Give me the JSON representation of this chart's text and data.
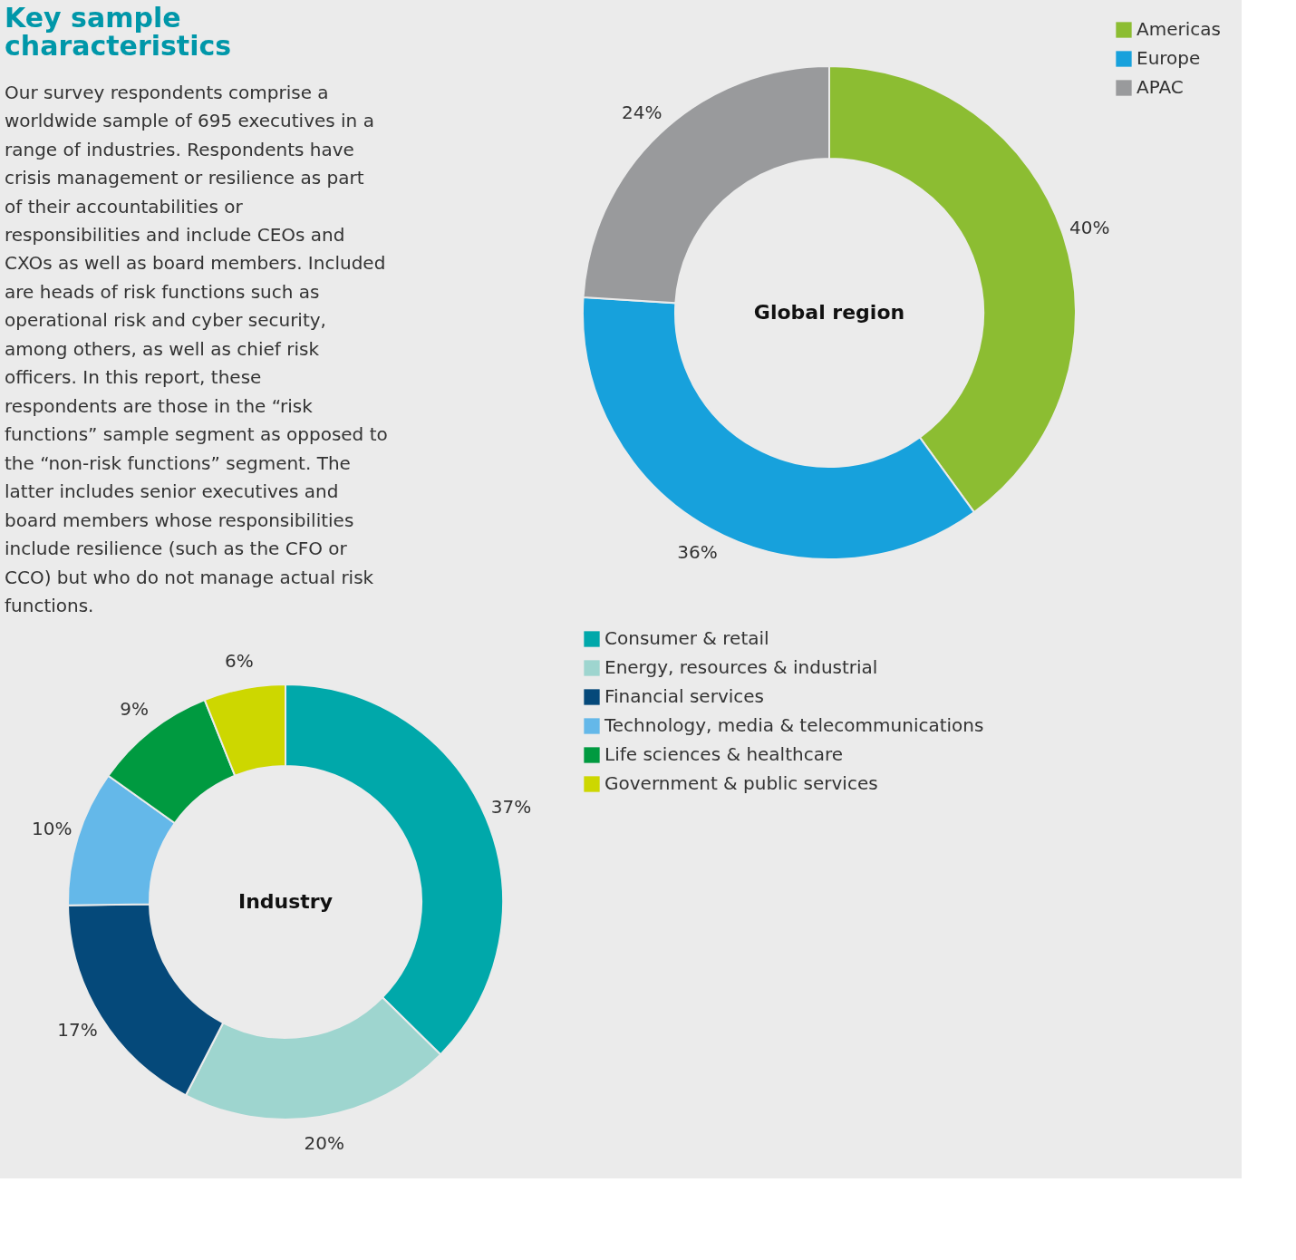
{
  "chart_data": [
    {
      "type": "other",
      "title": "Key sample characteristics",
      "annotations": [
        "Our survey respondents comprise a worldwide sample of 695 executives in a range of industries. Respondents have crisis management or resilience as part of their accountabilities or responsibilities and include CEOs and CXOs as well as board members. Included are heads of risk functions such as operational risk and cyber security, among others, as well as chief risk officers. In this report, these respondents are those in the “risk functions” sample segment as opposed to the “non-risk functions” segment. The latter includes senior executives and board members whose responsibilities include resilience (such as the CFO or CCO) but who do not manage actual risk functions."
      ]
    },
    {
      "type": "donut",
      "title": "Global region",
      "categories": [
        "Americas",
        "Europe",
        "APAC"
      ],
      "values": [
        40,
        36,
        24
      ],
      "value_labels": [
        "40%",
        "36%",
        "24%"
      ],
      "colors": [
        "#8cbd32",
        "#17a1dc",
        "#999a9c"
      ],
      "legend": "top right"
    },
    {
      "type": "donut",
      "title": "Industry",
      "categories": [
        "Consumer & retail",
        "Energy, resources & industrial",
        "Financial services",
        "Technology, media & telecommunications",
        "Life sciences & healthcare",
        "Government & public services"
      ],
      "values": [
        37,
        20,
        17,
        10,
        9,
        6
      ],
      "value_labels": [
        "37%",
        "20%",
        "17%",
        "10%",
        "9%",
        "6%"
      ],
      "colors": [
        "#00a8aa",
        "#9ed5cf",
        "#05497a",
        "#64b8e9",
        "#009a40",
        "#cdd700"
      ],
      "legend": "right"
    }
  ]
}
